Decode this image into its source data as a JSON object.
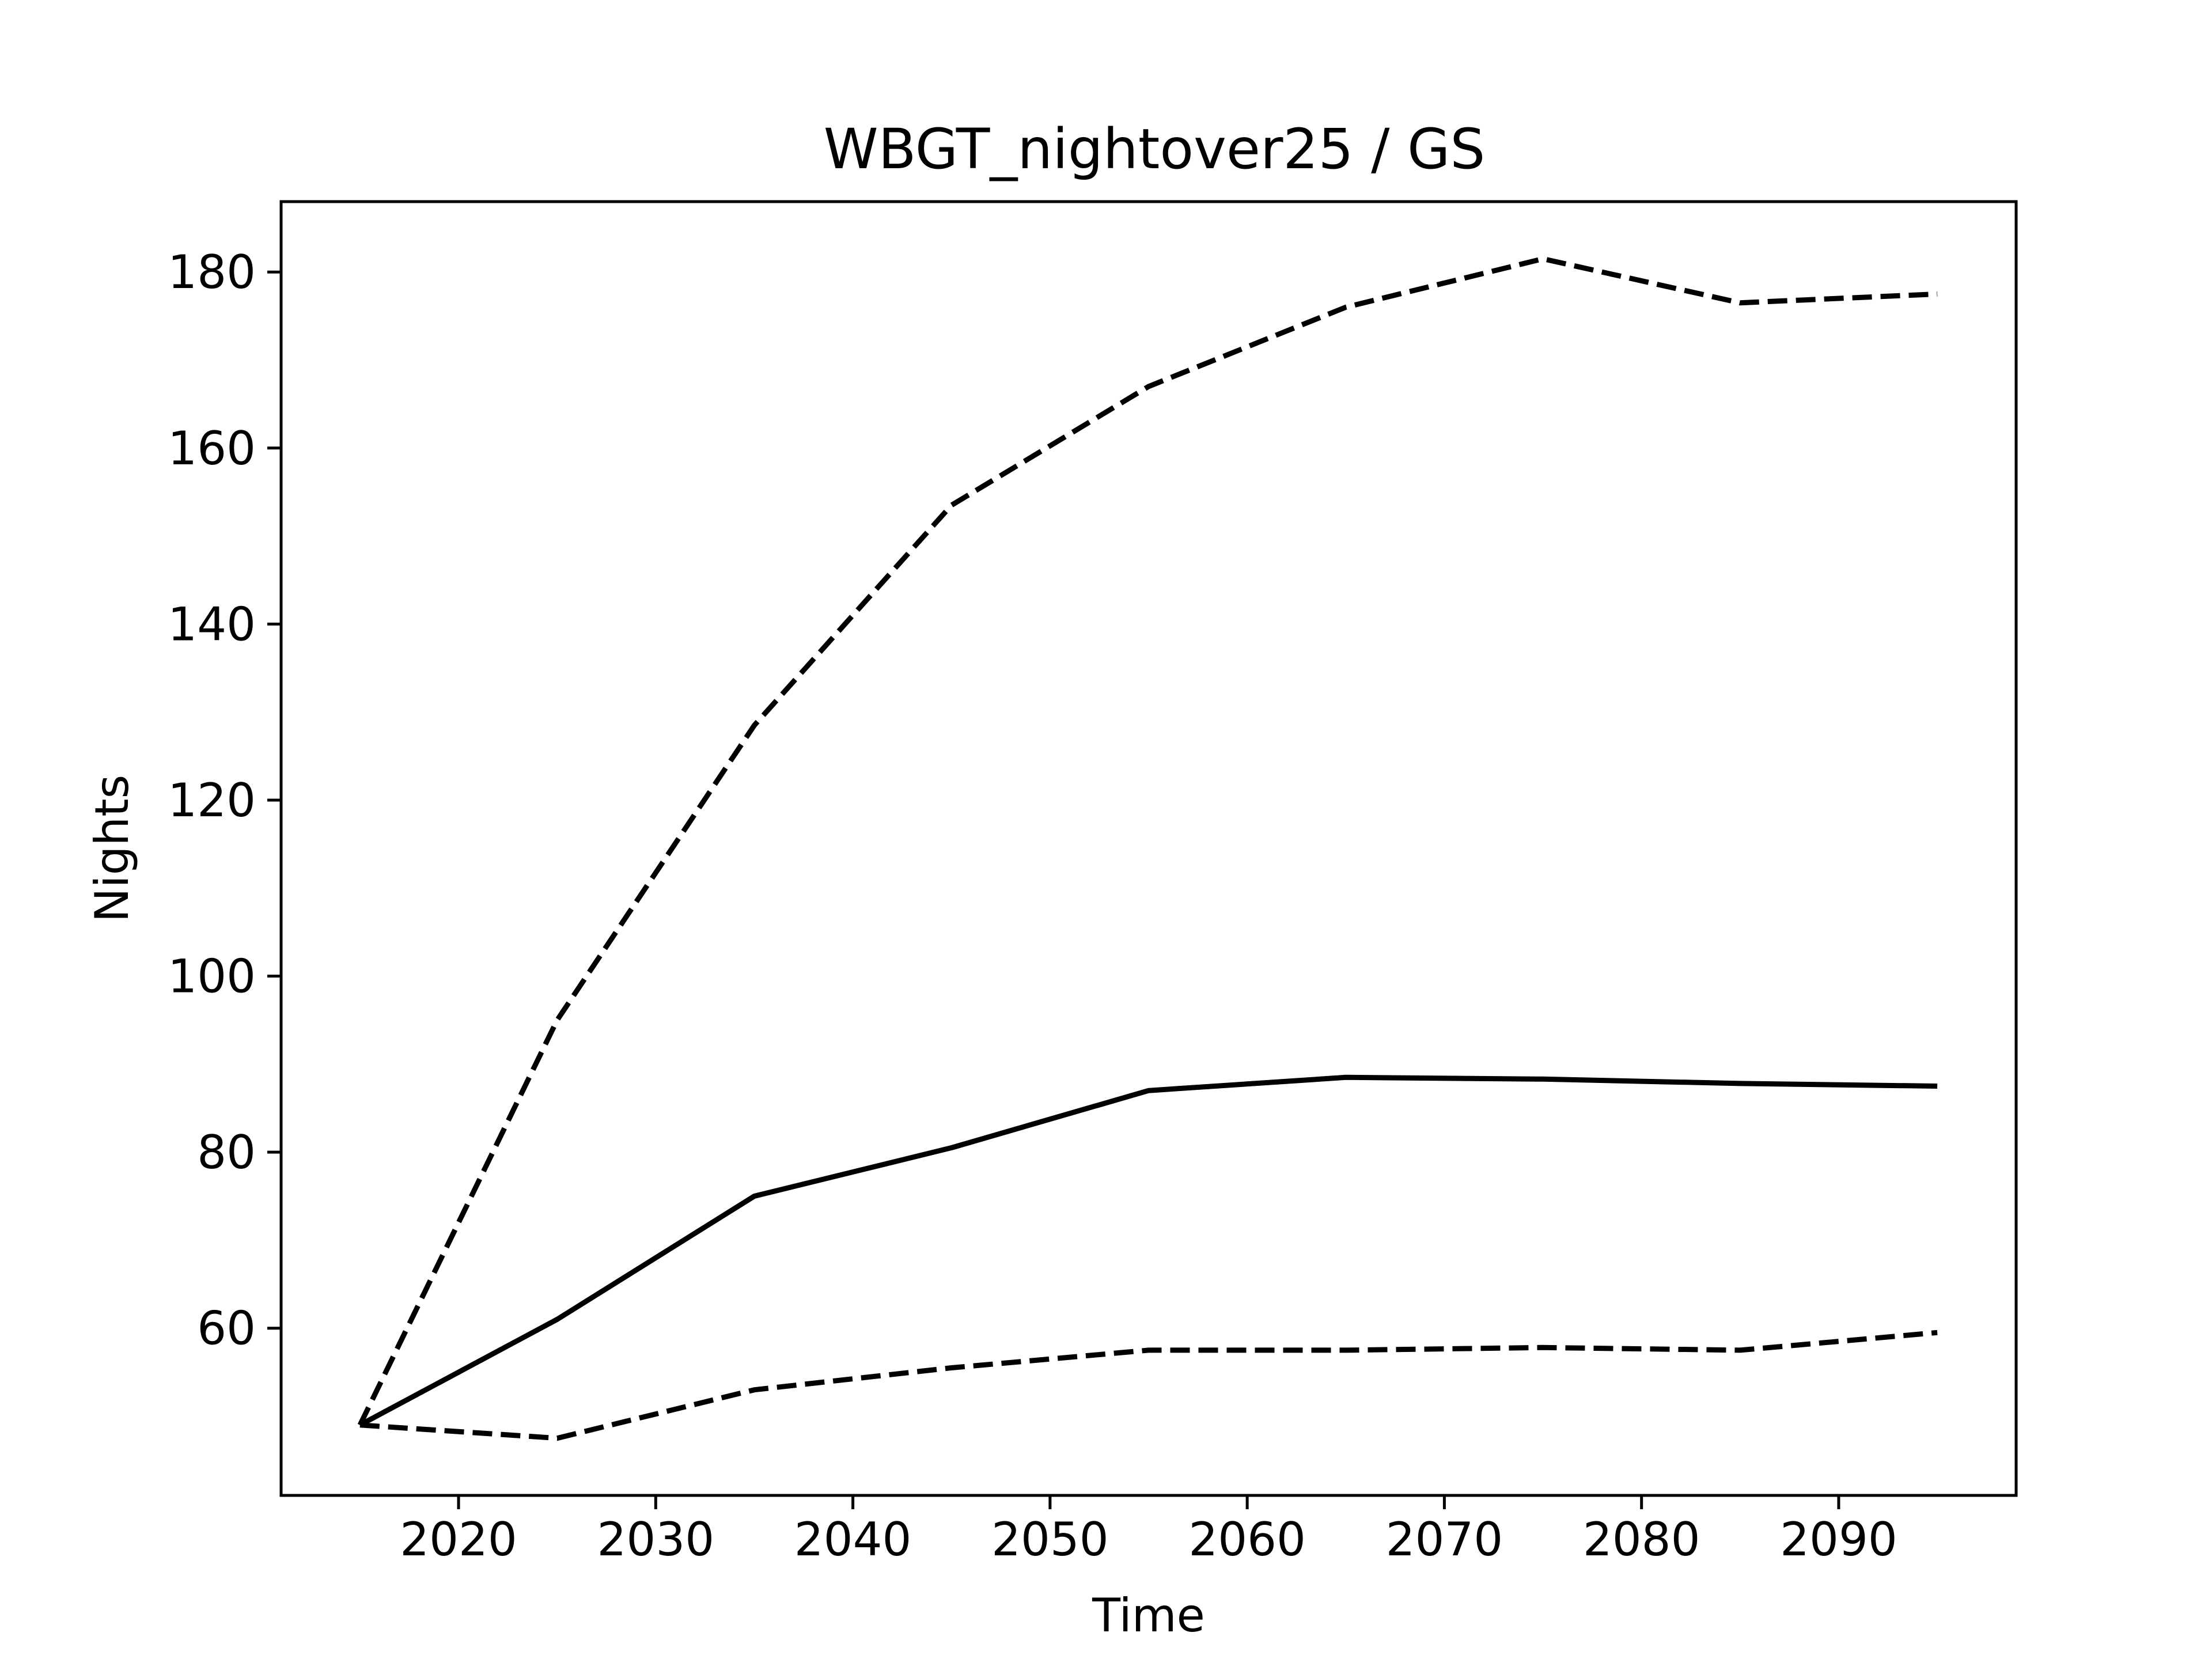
{
  "chart_data": {
    "type": "line",
    "title": "WBGT_nightover25 / GS",
    "xlabel": "Time",
    "ylabel": "Nights",
    "xlim": [
      2011,
      2099
    ],
    "ylim": [
      41,
      188
    ],
    "xticks": [
      2020,
      2030,
      2040,
      2050,
      2060,
      2070,
      2080,
      2090
    ],
    "yticks": [
      60,
      80,
      100,
      120,
      140,
      160,
      180
    ],
    "grid": false,
    "legend": "none",
    "x": [
      2015,
      2025,
      2035,
      2045,
      2055,
      2065,
      2075,
      2085,
      2095
    ],
    "series": [
      {
        "style": "solid",
        "color": "#000000",
        "values": [
          49.0,
          61.0,
          75.0,
          80.5,
          87.0,
          88.5,
          88.3,
          87.8,
          87.5
        ]
      },
      {
        "style": "dashed",
        "color": "#000000",
        "values": [
          49.0,
          95.0,
          128.5,
          153.5,
          167.0,
          176.0,
          181.5,
          176.5,
          177.5
        ]
      },
      {
        "style": "dashed",
        "color": "#000000",
        "values": [
          49.0,
          47.5,
          53.0,
          55.5,
          57.5,
          57.5,
          57.8,
          57.5,
          59.5
        ]
      }
    ]
  }
}
